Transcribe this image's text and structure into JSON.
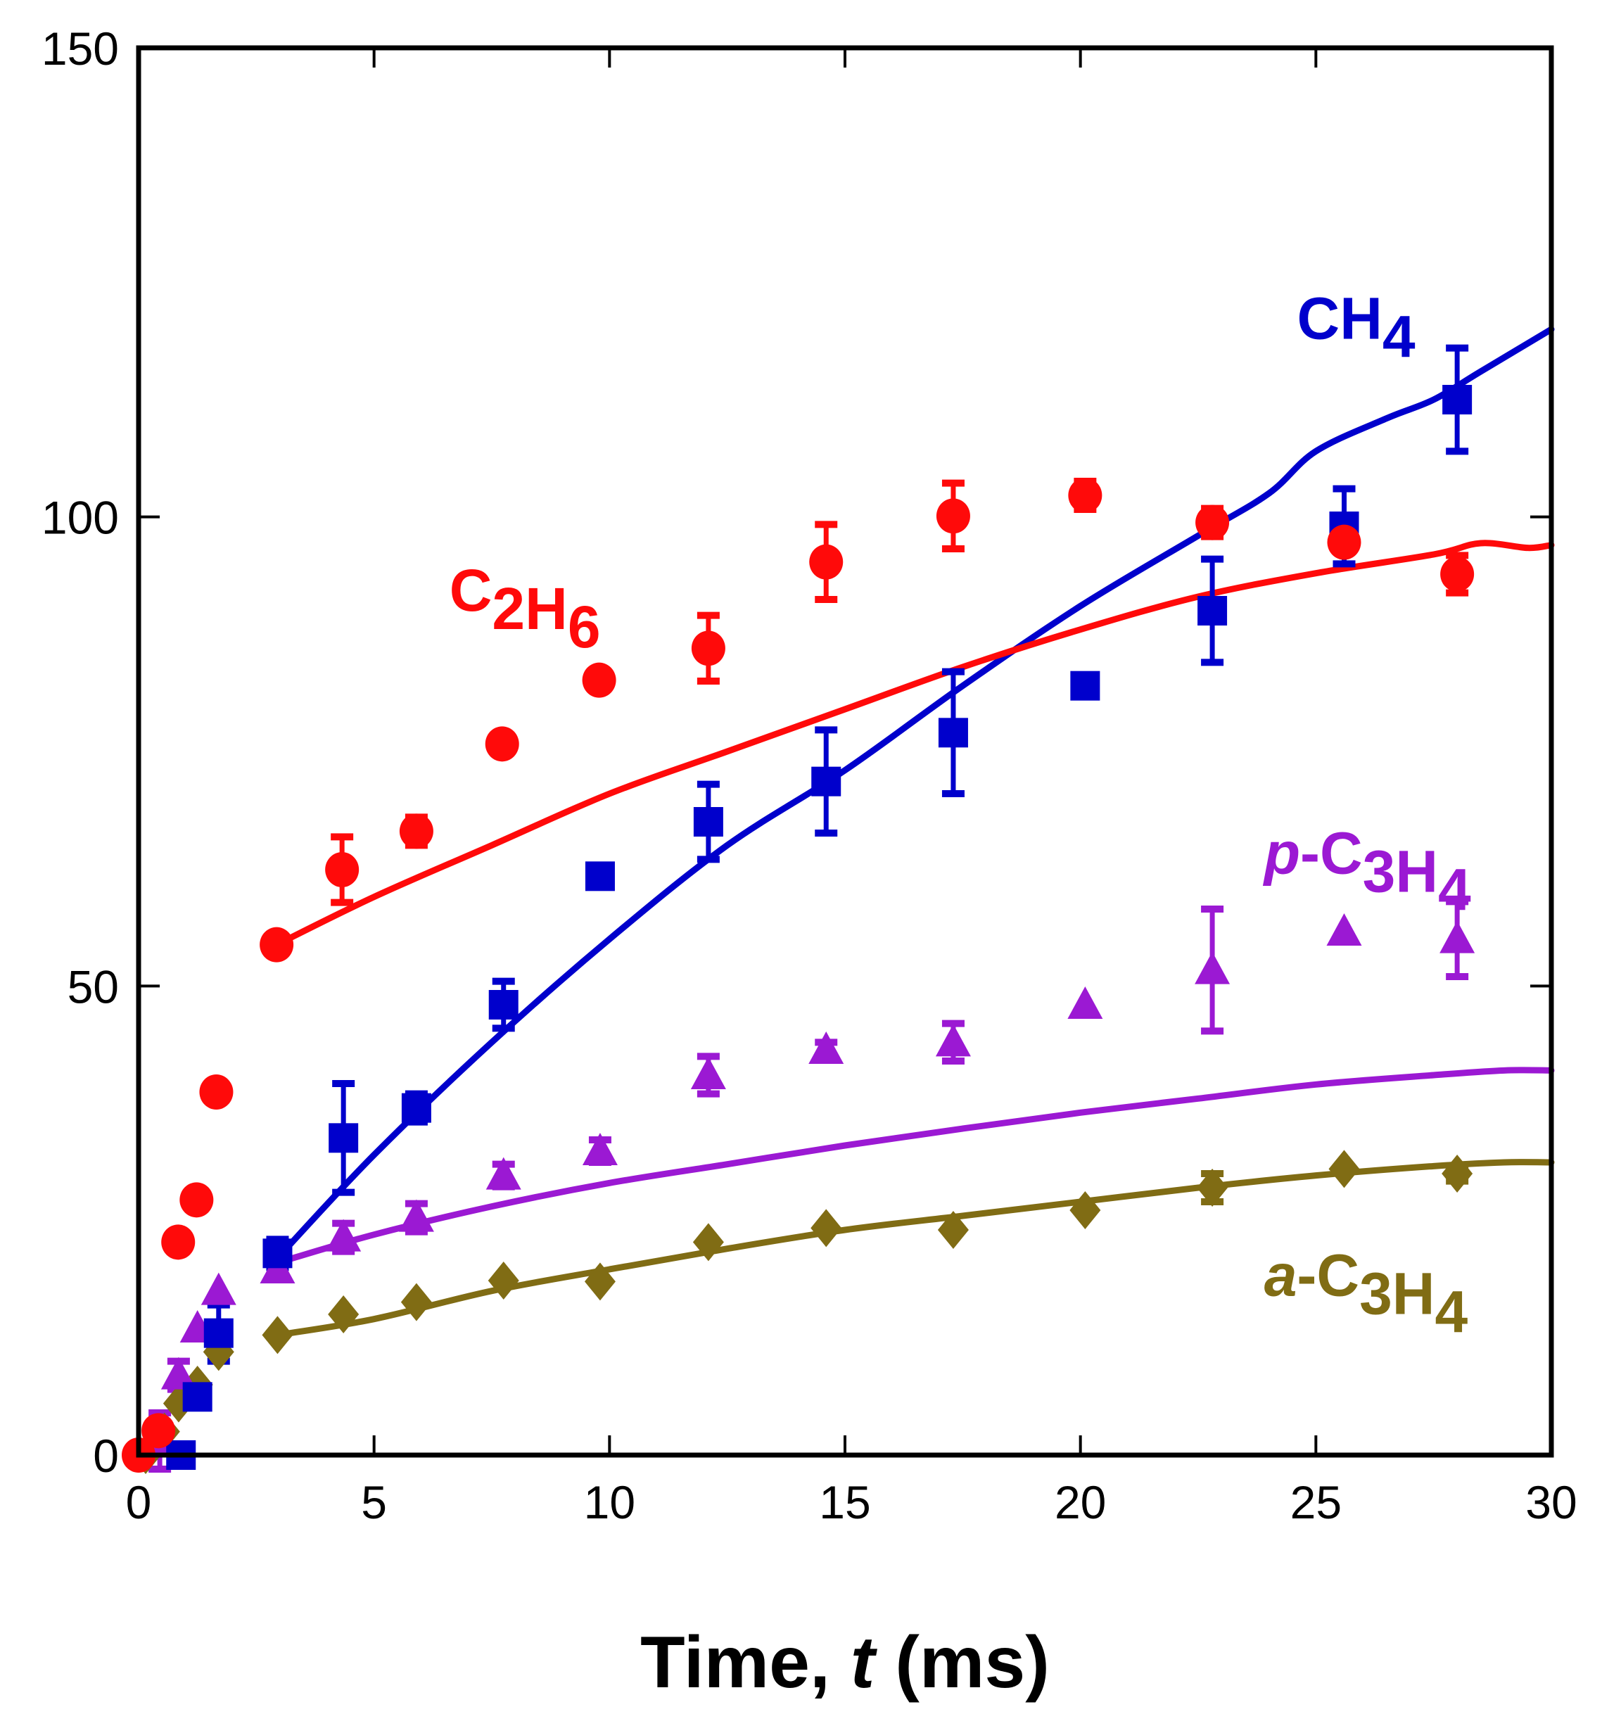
{
  "chart_data": {
    "type": "scatter",
    "title": "",
    "xlabel": "Time, t (ms)",
    "xlabel_parts": [
      {
        "text": "Time, ",
        "italic": false
      },
      {
        "text": "t",
        "italic": true
      },
      {
        "text": " (ms)",
        "italic": false
      }
    ],
    "ylabel": "",
    "xlim": [
      0,
      30
    ],
    "ylim": [
      0,
      150
    ],
    "xticks": [
      0,
      5,
      10,
      15,
      20,
      25,
      30
    ],
    "xtick_labels": [
      "0",
      "5",
      "10",
      "15",
      "20",
      "25",
      "30"
    ],
    "yticks": [
      0,
      50,
      100,
      150
    ],
    "ytick_labels": [
      "0",
      "50",
      "100",
      "150"
    ],
    "grid": false,
    "legend": "inline-labels",
    "series": [
      {
        "name": "CH4",
        "label_parts": [
          {
            "text": "CH",
            "sub": false
          },
          {
            "text": "4",
            "sub": true
          }
        ],
        "label_anchor": {
          "x": 24.6,
          "y": 119
        },
        "color": "#0000CC",
        "marker": "square",
        "points": [
          {
            "x": 0.9,
            "y": 0.0,
            "err": 0
          },
          {
            "x": 1.25,
            "y": 6.2,
            "err": 0
          },
          {
            "x": 1.7,
            "y": 13.0,
            "err": 3.0
          },
          {
            "x": 2.95,
            "y": 21.5,
            "err": 1.5
          },
          {
            "x": 4.35,
            "y": 33.8,
            "err": 5.8
          },
          {
            "x": 5.9,
            "y": 37.0,
            "err": 1.5
          },
          {
            "x": 7.75,
            "y": 48.0,
            "err": 2.5
          },
          {
            "x": 9.8,
            "y": 61.7,
            "err": 0
          },
          {
            "x": 12.1,
            "y": 67.5,
            "err": 4.0
          },
          {
            "x": 14.6,
            "y": 71.8,
            "err": 5.5
          },
          {
            "x": 17.3,
            "y": 77.0,
            "err": 6.5
          },
          {
            "x": 20.1,
            "y": 82.0,
            "err": 0
          },
          {
            "x": 22.8,
            "y": 90.0,
            "err": 5.5
          },
          {
            "x": 25.6,
            "y": 99.0,
            "err": 4.0
          },
          {
            "x": 28.0,
            "y": 112.5,
            "err": 5.5
          }
        ],
        "model": [
          [
            2.95,
            21.0
          ],
          [
            5,
            32.0
          ],
          [
            7.5,
            44.0
          ],
          [
            10,
            55.0
          ],
          [
            12.5,
            65.0
          ],
          [
            15,
            73.0
          ],
          [
            17.5,
            82.0
          ],
          [
            20,
            90.5
          ],
          [
            22.5,
            98.0
          ],
          [
            24,
            102.5
          ],
          [
            25,
            107.0
          ],
          [
            26.5,
            110.5
          ],
          [
            27.5,
            112.5
          ],
          [
            28.5,
            115.5
          ],
          [
            30,
            120.0
          ]
        ]
      },
      {
        "name": "C2H6",
        "label_parts": [
          {
            "text": "C",
            "sub": false
          },
          {
            "text": "2",
            "sub": true
          },
          {
            "text": "H",
            "sub": false
          },
          {
            "text": "6",
            "sub": true
          }
        ],
        "label_anchor": {
          "x": 6.6,
          "y": 90
        },
        "color": "#FF0A0A",
        "marker": "circle",
        "points": [
          {
            "x": 0.0,
            "y": 0.0,
            "err": 0
          },
          {
            "x": 0.42,
            "y": 2.6,
            "err": 0
          },
          {
            "x": 0.84,
            "y": 22.7,
            "err": 1.0
          },
          {
            "x": 1.23,
            "y": 27.2,
            "err": 0
          },
          {
            "x": 1.65,
            "y": 38.7,
            "err": 0
          },
          {
            "x": 2.93,
            "y": 54.4,
            "err": 0
          },
          {
            "x": 4.32,
            "y": 62.4,
            "err": 3.5
          },
          {
            "x": 5.9,
            "y": 66.5,
            "err": 1.5
          },
          {
            "x": 7.72,
            "y": 75.8,
            "err": 1.0
          },
          {
            "x": 9.78,
            "y": 82.6,
            "err": 0
          },
          {
            "x": 12.1,
            "y": 86.0,
            "err": 3.5
          },
          {
            "x": 14.6,
            "y": 95.2,
            "err": 4.0
          },
          {
            "x": 17.3,
            "y": 100.1,
            "err": 3.5
          },
          {
            "x": 20.1,
            "y": 102.3,
            "err": 1.5
          },
          {
            "x": 22.8,
            "y": 99.4,
            "err": 1.5
          },
          {
            "x": 25.6,
            "y": 97.3,
            "err": 1.0
          },
          {
            "x": 28.0,
            "y": 93.9,
            "err": 2.0
          }
        ],
        "model": [
          [
            2.93,
            54.4
          ],
          [
            5,
            59.5
          ],
          [
            7.5,
            65.0
          ],
          [
            10,
            70.5
          ],
          [
            12.5,
            75.0
          ],
          [
            15,
            79.5
          ],
          [
            17.5,
            84.0
          ],
          [
            20,
            88.0
          ],
          [
            22.5,
            91.5
          ],
          [
            25,
            94.0
          ],
          [
            27.5,
            96.0
          ],
          [
            28.5,
            97.2
          ],
          [
            29.5,
            96.7
          ],
          [
            30,
            97.0
          ]
        ]
      },
      {
        "name": "p-C3H4",
        "label_parts": [
          {
            "text": "p",
            "sub": false,
            "italic": true
          },
          {
            "text": "-C",
            "sub": false
          },
          {
            "text": "3",
            "sub": true
          },
          {
            "text": "H",
            "sub": false
          },
          {
            "text": "4",
            "sub": true
          }
        ],
        "label_anchor": {
          "x": 23.9,
          "y": 62
        },
        "color": "#9B19D3",
        "marker": "triangle",
        "points": [
          {
            "x": 0.45,
            "y": 1.5,
            "err": 3.0
          },
          {
            "x": 0.85,
            "y": 8.5,
            "err": 1.5
          },
          {
            "x": 1.25,
            "y": 13.5,
            "err": 0
          },
          {
            "x": 1.7,
            "y": 17.5,
            "err": 0
          },
          {
            "x": 2.95,
            "y": 19.8,
            "err": 0
          },
          {
            "x": 4.35,
            "y": 23.2,
            "err": 1.5
          },
          {
            "x": 5.9,
            "y": 25.3,
            "err": 1.5
          },
          {
            "x": 7.75,
            "y": 29.8,
            "err": 1.2
          },
          {
            "x": 9.8,
            "y": 32.4,
            "err": 1.2
          },
          {
            "x": 12.1,
            "y": 40.5,
            "err": 2.0
          },
          {
            "x": 14.6,
            "y": 43.2,
            "err": 0.8
          },
          {
            "x": 17.3,
            "y": 44.0,
            "err": 2.0
          },
          {
            "x": 20.1,
            "y": 48.0,
            "err": 0
          },
          {
            "x": 22.8,
            "y": 51.7,
            "err": 6.5
          },
          {
            "x": 25.6,
            "y": 55.8,
            "err": 0
          },
          {
            "x": 28.0,
            "y": 55.0,
            "err": 4.0
          }
        ],
        "model": [
          [
            2.95,
            20.5
          ],
          [
            5,
            23.5
          ],
          [
            7.5,
            26.5
          ],
          [
            10,
            29.0
          ],
          [
            12.5,
            31.0
          ],
          [
            15,
            33.0
          ],
          [
            17.5,
            34.8
          ],
          [
            20,
            36.5
          ],
          [
            22.5,
            38.0
          ],
          [
            25,
            39.5
          ],
          [
            27.5,
            40.5
          ],
          [
            29,
            41.0
          ],
          [
            30,
            41.0
          ]
        ]
      },
      {
        "name": "a-C3H4",
        "label_parts": [
          {
            "text": "a",
            "sub": false,
            "italic": true
          },
          {
            "text": "-C",
            "sub": false
          },
          {
            "text": "3",
            "sub": true
          },
          {
            "text": "H",
            "sub": false
          },
          {
            "text": "4",
            "sub": true
          }
        ],
        "label_anchor": {
          "x": 23.9,
          "y": 17
        },
        "color": "#806C14",
        "marker": "diamond",
        "points": [
          {
            "x": 0.15,
            "y": 0.0,
            "err": 0
          },
          {
            "x": 0.55,
            "y": 2.5,
            "err": 0
          },
          {
            "x": 0.85,
            "y": 5.5,
            "err": 0
          },
          {
            "x": 1.25,
            "y": 7.5,
            "err": 0
          },
          {
            "x": 1.7,
            "y": 11.0,
            "err": 0
          },
          {
            "x": 2.95,
            "y": 12.8,
            "err": 0
          },
          {
            "x": 4.35,
            "y": 15.0,
            "err": 0
          },
          {
            "x": 5.9,
            "y": 16.3,
            "err": 0
          },
          {
            "x": 7.75,
            "y": 18.6,
            "err": 0
          },
          {
            "x": 9.8,
            "y": 18.5,
            "err": 0
          },
          {
            "x": 12.1,
            "y": 22.7,
            "err": 0
          },
          {
            "x": 14.6,
            "y": 24.2,
            "err": 0
          },
          {
            "x": 17.3,
            "y": 24.0,
            "err": 0
          },
          {
            "x": 20.1,
            "y": 26.1,
            "err": 0
          },
          {
            "x": 22.8,
            "y": 28.5,
            "err": 1.5
          },
          {
            "x": 25.6,
            "y": 30.5,
            "err": 0
          },
          {
            "x": 28.0,
            "y": 30.0,
            "err": 0.8
          }
        ],
        "model": [
          [
            2.95,
            12.8
          ],
          [
            5,
            14.5
          ],
          [
            7.5,
            17.5
          ],
          [
            10,
            19.8
          ],
          [
            12.5,
            22.0
          ],
          [
            15,
            24.0
          ],
          [
            17.5,
            25.5
          ],
          [
            20,
            27.0
          ],
          [
            22.5,
            28.5
          ],
          [
            25,
            29.8
          ],
          [
            27.5,
            30.8
          ],
          [
            29,
            31.2
          ],
          [
            30,
            31.2
          ]
        ]
      }
    ]
  }
}
